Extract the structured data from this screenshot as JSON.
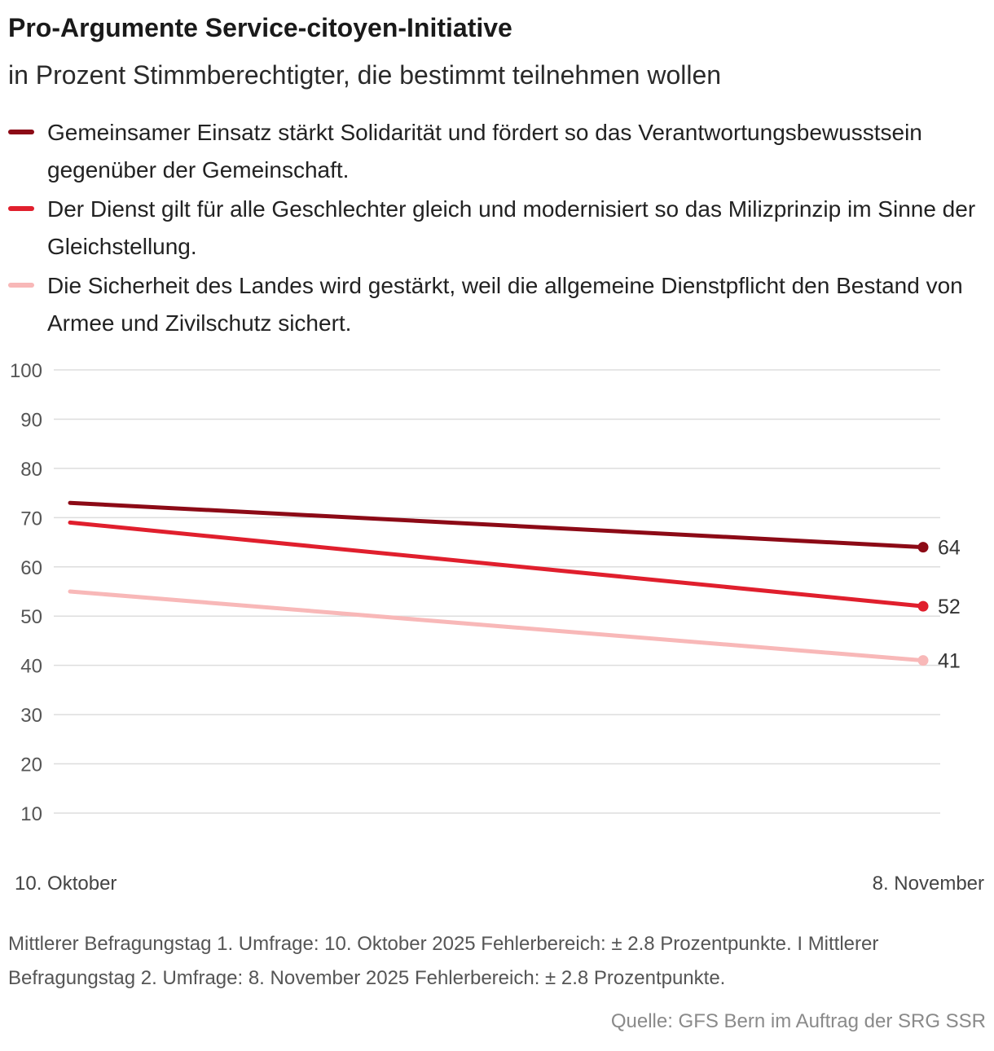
{
  "title": "Pro-Argumente Service-citoyen-Initiative",
  "subtitle": "in Prozent Stimmberechtigter, die bestimmt teilnehmen wollen",
  "footnote": "Mittlerer Befragungstag 1. Umfrage: 10. Oktober 2025 Fehlerbereich: ± 2.8 Prozentpunkte. I Mittlerer Befragungstag 2. Umfrage: 8. November 2025 Fehlerbereich: ± 2.8 Prozentpunkte.",
  "source": "Quelle: GFS Bern im Auftrag der SRG SSR",
  "chart_data": {
    "type": "line",
    "x": [
      "10. Oktober",
      "8. November"
    ],
    "ylim": [
      10,
      100
    ],
    "yticks": [
      100,
      90,
      80,
      70,
      60,
      50,
      40,
      30,
      20,
      10
    ],
    "grid": true,
    "legend_position": "top",
    "series": [
      {
        "name": "Gemeinsamer Einsatz stärkt Solidarität und fördert so das Verantwortungsbewusstsein gegenüber der Gemeinschaft.",
        "values": [
          73,
          64
        ],
        "end_label": "64",
        "color": "#8c0a16"
      },
      {
        "name": "Der Dienst gilt für alle Geschlechter gleich und modernisiert so das Milizprinzip im Sinne der Gleichstellung.",
        "values": [
          69,
          52
        ],
        "end_label": "52",
        "color": "#e01f2d"
      },
      {
        "name": "Die Sicherheit des Landes wird gestärkt, weil die allgemeine Dienstpflicht den Bestand von Armee und Zivilschutz sichert.",
        "values": [
          55,
          41
        ],
        "end_label": "41",
        "color": "#f8b8b8"
      }
    ]
  }
}
